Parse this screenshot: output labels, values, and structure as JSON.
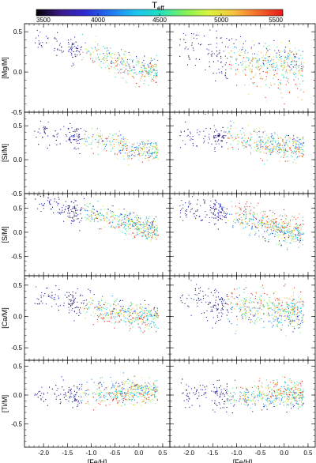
{
  "colorbar": {
    "label_main": "T",
    "label_sub": "eff",
    "ticks": [
      3500,
      4000,
      4500,
      5000,
      5500
    ],
    "range": [
      3500,
      5500
    ],
    "colors": [
      "#000000",
      "#3b1b8c",
      "#2d2bd6",
      "#1f74f0",
      "#19c2f0",
      "#1fe0c0",
      "#7ef25a",
      "#d9f53c",
      "#f5c23c",
      "#f56a28",
      "#e81a1a"
    ]
  },
  "chart_data": [
    {
      "type": "scatter",
      "ylabel": "[Mg/M]",
      "xlim": [
        -2.4,
        0.65
      ],
      "ylim": [
        -0.5,
        0.6
      ],
      "xticks": [
        -2.0,
        -1.5,
        -1.0,
        -0.5,
        0.0,
        0.5
      ],
      "yticks": [
        -0.5,
        0.0,
        0.5
      ],
      "color_by": "Teff",
      "series": [
        {
          "panel": "left",
          "trend": [
            [
              -2.2,
              0.4
            ],
            [
              -1.5,
              0.3
            ],
            [
              -1.0,
              0.25
            ],
            [
              -0.5,
              0.12
            ],
            [
              0.0,
              0.05
            ],
            [
              0.35,
              0.02
            ]
          ],
          "spread": 0.08,
          "n": 420
        },
        {
          "panel": "right",
          "trend": [
            [
              -2.2,
              0.35
            ],
            [
              -1.5,
              0.25
            ],
            [
              -1.0,
              0.15
            ],
            [
              -0.5,
              0.1
            ],
            [
              0.0,
              0.08
            ],
            [
              0.35,
              0.05
            ]
          ],
          "spread": 0.14,
          "n": 520
        }
      ]
    },
    {
      "type": "scatter",
      "ylabel": "[Si/M]",
      "xlim": [
        -2.4,
        0.65
      ],
      "ylim": [
        -0.5,
        0.7
      ],
      "xticks": [
        -2.0,
        -1.5,
        -1.0,
        -0.5,
        0.0,
        0.5
      ],
      "yticks": [
        -0.5,
        0.0,
        0.5
      ],
      "color_by": "Teff",
      "series": [
        {
          "panel": "left",
          "trend": [
            [
              -2.2,
              0.4
            ],
            [
              -1.5,
              0.35
            ],
            [
              -1.0,
              0.32
            ],
            [
              -0.5,
              0.22
            ],
            [
              0.0,
              0.15
            ],
            [
              0.35,
              0.12
            ]
          ],
          "spread": 0.08,
          "n": 420
        },
        {
          "panel": "right",
          "trend": [
            [
              -2.2,
              0.38
            ],
            [
              -1.5,
              0.35
            ],
            [
              -1.0,
              0.32
            ],
            [
              -0.5,
              0.25
            ],
            [
              0.0,
              0.2
            ],
            [
              0.35,
              0.18
            ]
          ],
          "spread": 0.09,
          "n": 480
        }
      ]
    },
    {
      "type": "scatter",
      "ylabel": "[S/M]",
      "xlim": [
        -2.4,
        0.65
      ],
      "ylim": [
        -0.9,
        0.8
      ],
      "xticks": [
        -2.0,
        -1.5,
        -1.0,
        -0.5,
        0.0,
        0.5
      ],
      "yticks": [
        -0.5,
        0.0,
        0.5
      ],
      "color_by": "Teff",
      "series": [
        {
          "panel": "left",
          "trend": [
            [
              -2.2,
              0.65
            ],
            [
              -1.5,
              0.5
            ],
            [
              -1.0,
              0.4
            ],
            [
              -0.5,
              0.25
            ],
            [
              0.0,
              0.12
            ],
            [
              0.35,
              0.05
            ]
          ],
          "spread": 0.12,
          "n": 560
        },
        {
          "panel": "right",
          "trend": [
            [
              -2.2,
              0.55
            ],
            [
              -1.5,
              0.45
            ],
            [
              -1.0,
              0.35
            ],
            [
              -0.5,
              0.2
            ],
            [
              0.0,
              0.05
            ],
            [
              0.35,
              0.0
            ]
          ],
          "spread": 0.14,
          "n": 620
        }
      ]
    },
    {
      "type": "scatter",
      "ylabel": "[Ca/M]",
      "xlim": [
        -2.4,
        0.65
      ],
      "ylim": [
        -0.7,
        0.65
      ],
      "xticks": [
        -2.0,
        -1.5,
        -1.0,
        -0.5,
        0.0,
        0.5
      ],
      "yticks": [
        -0.5,
        0.0,
        0.5
      ],
      "color_by": "Teff",
      "series": [
        {
          "panel": "left",
          "trend": [
            [
              -2.2,
              0.35
            ],
            [
              -1.5,
              0.25
            ],
            [
              -1.0,
              0.18
            ],
            [
              -0.5,
              0.08
            ],
            [
              0.0,
              0.02
            ],
            [
              0.35,
              0.0
            ]
          ],
          "spread": 0.1,
          "n": 520
        },
        {
          "panel": "right",
          "trend": [
            [
              -2.2,
              0.3
            ],
            [
              -1.5,
              0.2
            ],
            [
              -1.0,
              0.18
            ],
            [
              -0.5,
              0.12
            ],
            [
              0.0,
              0.1
            ],
            [
              0.35,
              0.08
            ]
          ],
          "spread": 0.15,
          "n": 600
        }
      ]
    },
    {
      "type": "scatter",
      "ylabel": "[Ti/M]",
      "xlabel": "[Fe/H]",
      "xlim": [
        -2.4,
        0.65
      ],
      "ylim": [
        -0.9,
        0.6
      ],
      "xticks": [
        -2.0,
        -1.5,
        -1.0,
        -0.5,
        0.0,
        0.5
      ],
      "yticks": [
        -0.5,
        0.0,
        0.5
      ],
      "color_by": "Teff",
      "series": [
        {
          "panel": "left",
          "trend": [
            [
              -2.2,
              0.05
            ],
            [
              -1.5,
              0.02
            ],
            [
              -1.0,
              0.02
            ],
            [
              -0.5,
              0.05
            ],
            [
              0.0,
              0.08
            ],
            [
              0.35,
              0.08
            ]
          ],
          "spread": 0.1,
          "n": 540
        },
        {
          "panel": "right",
          "trend": [
            [
              -2.2,
              0.05
            ],
            [
              -1.5,
              0.0
            ],
            [
              -1.0,
              -0.02
            ],
            [
              -0.5,
              0.0
            ],
            [
              0.0,
              0.02
            ],
            [
              0.35,
              0.0
            ]
          ],
          "spread": 0.11,
          "n": 560
        }
      ]
    }
  ]
}
